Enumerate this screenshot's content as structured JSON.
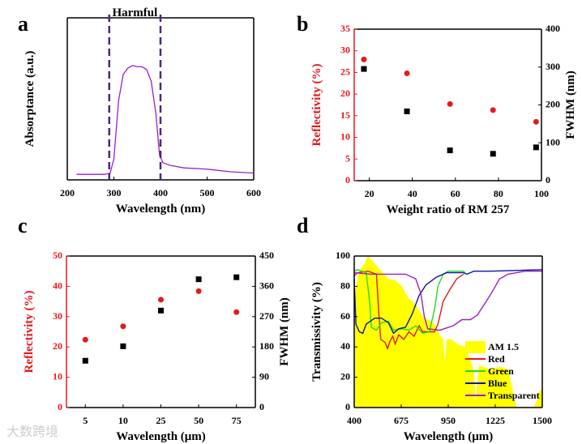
{
  "watermark": "大数跨境",
  "chart_data": [
    {
      "panel": "a",
      "type": "line",
      "xlabel": "Wavelength (nm)",
      "ylabel": "Absorptance (a.u.)",
      "xlim": [
        200,
        600
      ],
      "xticks": [
        "200",
        "300",
        "400",
        "500",
        "600"
      ],
      "annotation": "Harmful",
      "harmful_range": [
        290,
        400
      ],
      "color": "#9b1fc9",
      "x": [
        220,
        280,
        292,
        300,
        310,
        320,
        330,
        340,
        350,
        360,
        370,
        380,
        390,
        398,
        405,
        420,
        450,
        500,
        550,
        600
      ],
      "y": [
        3,
        3,
        4,
        15,
        60,
        80,
        85,
        87,
        86,
        86,
        84,
        75,
        50,
        18,
        12,
        10,
        8,
        7,
        5,
        4
      ]
    },
    {
      "panel": "b",
      "type": "scatter",
      "xlabel": "Weight ratio of RM 257",
      "ylabel": "Reflectivity (%)",
      "y2label": "FWHM (nm)",
      "xlim": [
        13,
        100
      ],
      "ylim": [
        0,
        35
      ],
      "y2lim": [
        0,
        400
      ],
      "xticks": [
        "20",
        "40",
        "60",
        "80",
        "100"
      ],
      "yticks": [
        "0",
        "5",
        "10",
        "15",
        "20",
        "25",
        "30",
        "35"
      ],
      "y2ticks": [
        "0",
        "100",
        "200",
        "300",
        "400"
      ],
      "x": [
        17.5,
        37.5,
        57.5,
        77.5,
        97.5
      ],
      "series": [
        {
          "name": "Reflectivity",
          "axis": "left",
          "color": "#e31a1c",
          "marker": "circle",
          "values": [
            28,
            24.8,
            17.7,
            16.3,
            13.6
          ]
        },
        {
          "name": "FWHM",
          "axis": "right",
          "color": "#000000",
          "marker": "square",
          "values": [
            295,
            183,
            80,
            71,
            88
          ]
        }
      ]
    },
    {
      "panel": "c",
      "type": "scatter",
      "xlabel": "Wavelength (μm)",
      "ylabel": "Reflectivity (%)",
      "y2label": "FWHM (nm)",
      "categories": [
        "5",
        "10",
        "25",
        "50",
        "75"
      ],
      "ylim": [
        0,
        50
      ],
      "y2lim": [
        0,
        450
      ],
      "yticks": [
        "0",
        "10",
        "20",
        "30",
        "40",
        "50"
      ],
      "y2ticks": [
        "0",
        "90",
        "180",
        "270",
        "360",
        "450"
      ],
      "series": [
        {
          "name": "Reflectivity",
          "axis": "left",
          "color": "#e31a1c",
          "marker": "circle",
          "values": [
            22.4,
            26.8,
            35.6,
            38.4,
            31.5
          ]
        },
        {
          "name": "FWHM",
          "axis": "right",
          "color": "#000000",
          "marker": "square",
          "values": [
            139,
            182,
            288,
            381,
            387
          ]
        }
      ]
    },
    {
      "panel": "d",
      "type": "line",
      "xlabel": "Wavelength (μm)",
      "ylabel": "Transmissivity (%)",
      "xlim": [
        400,
        1500
      ],
      "ylim": [
        0,
        100
      ],
      "xticks": [
        "400",
        "675",
        "950",
        "1225",
        "1500"
      ],
      "yticks": [
        "0",
        "20",
        "40",
        "60",
        "80",
        "100"
      ],
      "legend": "bottom-right",
      "series": [
        {
          "name": "AM 1.5",
          "type": "area",
          "color": "#ffff00",
          "x": [
            400,
            410,
            430,
            460,
            480,
            520,
            560,
            600,
            640,
            680,
            700,
            720,
            760,
            800,
            830,
            870,
            900,
            920,
            930,
            940,
            970,
            1000,
            1050,
            1100,
            1110,
            1130,
            1200,
            1250,
            1300,
            1330,
            1350,
            1450,
            1470,
            1480,
            1500
          ],
          "y": [
            60,
            80,
            90,
            95,
            100,
            95,
            90,
            85,
            84,
            80,
            75,
            72,
            68,
            60,
            58,
            55,
            48,
            45,
            30,
            45,
            45,
            42,
            40,
            25,
            5,
            28,
            25,
            27,
            25,
            10,
            0,
            0,
            5,
            10,
            12
          ]
        },
        {
          "name": "Red",
          "color": "#e31a1c",
          "x": [
            400,
            420,
            480,
            530,
            545,
            555,
            580,
            595,
            610,
            625,
            640,
            660,
            690,
            720,
            750,
            780,
            800,
            840,
            870,
            890,
            920,
            960,
            1000,
            1040
          ],
          "y": [
            87,
            89,
            90,
            88,
            60,
            45,
            43,
            39,
            44,
            47,
            42,
            48,
            45,
            50,
            47,
            54,
            50,
            50,
            50,
            55,
            70,
            78,
            85,
            88
          ]
        },
        {
          "name": "Green",
          "color": "#22dd22",
          "x": [
            400,
            420,
            470,
            490,
            500,
            530,
            560,
            600,
            630,
            680,
            720,
            760,
            800,
            840,
            870,
            890,
            920,
            950,
            1040,
            1050
          ],
          "y": [
            90,
            91,
            89,
            70,
            53,
            51,
            56,
            57,
            51,
            52,
            51,
            54,
            49,
            50,
            65,
            80,
            88,
            90,
            90,
            88
          ]
        },
        {
          "name": "Blue",
          "color": "#0a1a9c",
          "x": [
            400,
            410,
            430,
            450,
            470,
            520,
            560,
            600,
            630,
            660,
            700,
            740,
            780,
            820,
            880,
            940,
            1040,
            1060,
            1100,
            1200,
            1500
          ],
          "y": [
            85,
            55,
            50,
            49,
            55,
            59,
            59,
            56,
            49,
            52,
            53,
            62,
            74,
            81,
            86,
            89,
            89,
            88,
            90,
            90,
            91
          ]
        },
        {
          "name": "Transparent",
          "color": "#9b1fc9",
          "x": [
            400,
            500,
            600,
            700,
            760,
            790,
            810,
            830,
            900,
            980,
            1030,
            1080,
            1120,
            1200,
            1250,
            1300,
            1400,
            1500
          ],
          "y": [
            89,
            88,
            88,
            88,
            85,
            75,
            60,
            52,
            51,
            54,
            58,
            58,
            61,
            75,
            85,
            88,
            90,
            90
          ]
        }
      ]
    }
  ],
  "panel_labels": [
    "a",
    "b",
    "c",
    "d"
  ]
}
